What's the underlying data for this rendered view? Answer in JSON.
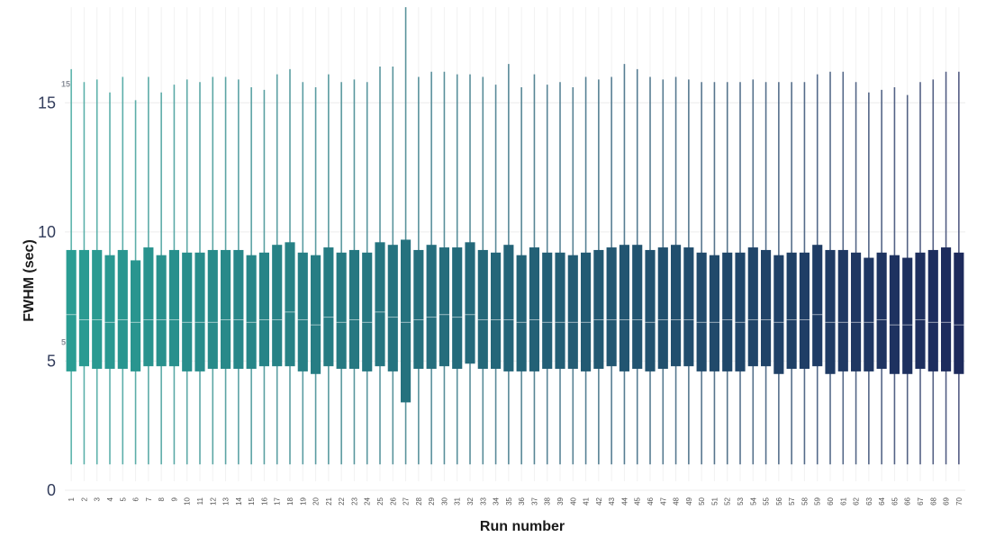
{
  "chart_data": {
    "type": "boxplot",
    "xlabel": "Run number",
    "ylabel": "FWHM (sec)",
    "ylim": [
      0,
      18.7
    ],
    "y_ticks": [
      0,
      5,
      10,
      15
    ],
    "y_minor_ticks": [
      5,
      15
    ],
    "grid": true,
    "color_scale": [
      "#2a9d93",
      "#1d2a5c"
    ],
    "whisker_low": 1.0,
    "categories": [
      "1",
      "2",
      "3",
      "4",
      "5",
      "6",
      "7",
      "8",
      "9",
      "10",
      "11",
      "12",
      "13",
      "14",
      "15",
      "16",
      "17",
      "18",
      "19",
      "20",
      "21",
      "22",
      "23",
      "24",
      "25",
      "26",
      "27",
      "28",
      "29",
      "30",
      "31",
      "32",
      "33",
      "34",
      "35",
      "36",
      "37",
      "38",
      "39",
      "40",
      "41",
      "42",
      "43",
      "44",
      "45",
      "46",
      "47",
      "48",
      "49",
      "50",
      "51",
      "52",
      "53",
      "54",
      "55",
      "56",
      "57",
      "58",
      "59",
      "60",
      "61",
      "62",
      "63",
      "64",
      "65",
      "66",
      "67",
      "68",
      "69",
      "70"
    ],
    "q3": [
      9.3,
      9.3,
      9.3,
      9.1,
      9.3,
      8.9,
      9.4,
      9.1,
      9.3,
      9.2,
      9.2,
      9.3,
      9.3,
      9.3,
      9.1,
      9.2,
      9.5,
      9.6,
      9.2,
      9.1,
      9.4,
      9.2,
      9.3,
      9.2,
      9.6,
      9.5,
      9.7,
      9.3,
      9.5,
      9.4,
      9.4,
      9.6,
      9.3,
      9.2,
      9.5,
      9.1,
      9.4,
      9.2,
      9.2,
      9.1,
      9.2,
      9.3,
      9.4,
      9.5,
      9.5,
      9.3,
      9.4,
      9.5,
      9.4,
      9.2,
      9.1,
      9.2,
      9.2,
      9.4,
      9.3,
      9.1,
      9.2,
      9.2,
      9.5,
      9.3,
      9.3,
      9.2,
      9.0,
      9.2,
      9.1,
      9.0,
      9.2,
      9.3,
      9.4,
      9.2
    ],
    "median": [
      6.8,
      6.6,
      6.6,
      6.5,
      6.6,
      6.5,
      6.6,
      6.6,
      6.6,
      6.5,
      6.5,
      6.5,
      6.6,
      6.6,
      6.5,
      6.6,
      6.6,
      6.9,
      6.6,
      6.4,
      6.7,
      6.5,
      6.6,
      6.5,
      6.9,
      6.7,
      6.5,
      6.6,
      6.7,
      6.8,
      6.7,
      6.8,
      6.6,
      6.6,
      6.6,
      6.5,
      6.6,
      6.5,
      6.5,
      6.5,
      6.5,
      6.6,
      6.6,
      6.6,
      6.6,
      6.5,
      6.6,
      6.6,
      6.6,
      6.5,
      6.5,
      6.6,
      6.5,
      6.6,
      6.6,
      6.5,
      6.6,
      6.6,
      6.8,
      6.5,
      6.5,
      6.5,
      6.5,
      6.6,
      6.4,
      6.4,
      6.6,
      6.5,
      6.5,
      6.4
    ],
    "q1": [
      4.6,
      4.8,
      4.7,
      4.7,
      4.7,
      4.6,
      4.8,
      4.8,
      4.8,
      4.6,
      4.6,
      4.7,
      4.7,
      4.7,
      4.7,
      4.8,
      4.8,
      4.8,
      4.6,
      4.5,
      4.8,
      4.7,
      4.7,
      4.6,
      4.8,
      4.6,
      3.4,
      4.7,
      4.7,
      4.8,
      4.7,
      4.9,
      4.7,
      4.7,
      4.6,
      4.6,
      4.6,
      4.7,
      4.7,
      4.7,
      4.6,
      4.7,
      4.8,
      4.6,
      4.7,
      4.6,
      4.7,
      4.8,
      4.8,
      4.6,
      4.6,
      4.6,
      4.6,
      4.8,
      4.8,
      4.5,
      4.7,
      4.7,
      4.8,
      4.5,
      4.6,
      4.6,
      4.6,
      4.7,
      4.5,
      4.5,
      4.7,
      4.6,
      4.6,
      4.5
    ],
    "whisker_high": [
      16.3,
      15.8,
      15.9,
      15.4,
      16.0,
      15.1,
      16.0,
      15.4,
      15.7,
      15.9,
      15.8,
      16.0,
      16.0,
      15.9,
      15.6,
      15.5,
      16.1,
      16.3,
      15.8,
      15.6,
      16.1,
      15.8,
      15.9,
      15.8,
      16.4,
      16.4,
      18.7,
      16.0,
      16.2,
      16.2,
      16.1,
      16.1,
      16.0,
      15.7,
      16.5,
      15.6,
      16.1,
      15.7,
      15.8,
      15.6,
      16.0,
      15.9,
      16.0,
      16.5,
      16.3,
      16.0,
      15.9,
      16.0,
      15.9,
      15.8,
      15.8,
      15.8,
      15.8,
      15.9,
      15.8,
      15.8,
      15.8,
      15.8,
      16.1,
      16.2,
      16.2,
      15.8,
      15.4,
      15.5,
      15.6,
      15.3,
      15.8,
      15.9,
      16.2,
      16.2
    ]
  }
}
